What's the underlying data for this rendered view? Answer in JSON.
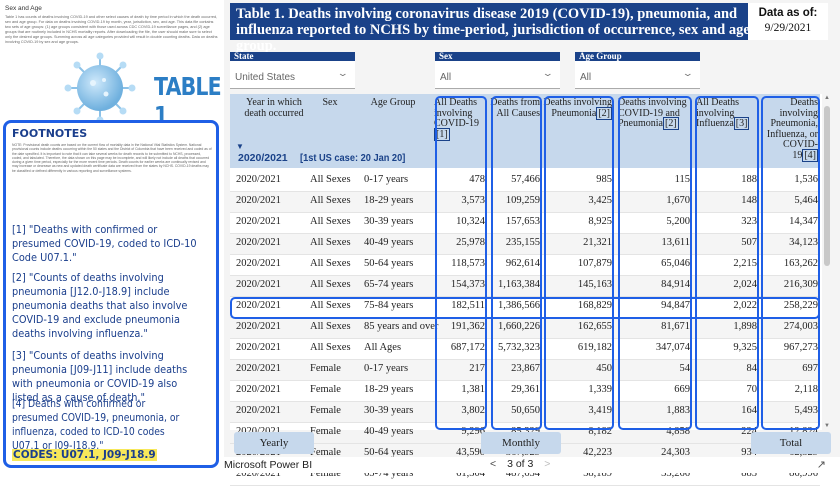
{
  "left_panel": {
    "intro_title": "Sex and Age",
    "intro_text": "Table 1 has counts of deaths involving COVID-19 and other select causes of death by time period in which the death occurred, sex and age group. For data on deaths involving COVID-19 by month, year, jurisdiction, sex, and age. This data file contains two sets of age groups: (1) age groups consistent with those used across CDC COVID-19 surveillance pages, and (2) age groups that are routinely included in NCHS mortality reports. After downloading the file, the user should make sure to select only the desired age groups. Summing across all age categories provided will result in double counting deaths. Data on deaths involving COVID-19 by sex and age groups.",
    "table_label": "TABLE 1",
    "footnotes": {
      "title": "FOOTNOTES",
      "small_text": "NOTE: Provisional death counts are based on the current flow of mortality data in the National Vital Statistics System. National provisional counts include deaths occurring within the 50 states and the District of Columbia that have been received and coded as of the date specified. It is important to note that it can take several weeks for death records to be submitted to NCHS, processed, coded, and tabulated. Therefore, the data shown on this page may be incomplete, and will likely not include all deaths that occurred during a given time period, especially for the more recent time periods. Death counts for earlier weeks are continually revised and may increase or decrease as new and updated death certificate data are received from the states by NCHS. COVID-19 deaths may be classified or defined differently in various reporting and surveillance systems.",
      "items": [
        "[1] \"Deaths with confirmed or presumed COVID-19, coded to ICD-10 Code U07.1.\"",
        "[2] \"Counts of deaths involving pneumonia [J12.0-J18.9] include pneumonia deaths that also involve COVID-19 and exclude pneumonia deaths involving influenza.\"",
        "[3] \"Counts of deaths involving pneumonia [J09-J11] include deaths with pneumonia or COVID-19 also listed as a cause of death.\"",
        "[4] Deaths with confirmed or presumed COVID-19, pneumonia, or influenza, coded to ICD-10 codes U07.1 or J09-J18.9.\""
      ],
      "codes": "CODES: U07.1, J09-J18.9"
    }
  },
  "report": {
    "title": "Table 1. Deaths involving coronavirus disease 2019 (COVID-19), pneumonia, and influenza reported to NCHS by time-period, jurisdiction of occurrence, sex and age-group.",
    "data_as_of_label": "Data as of:",
    "data_as_of_value": "9/29/2021",
    "slicers": [
      {
        "label": "State",
        "value": "United States"
      },
      {
        "label": "Sex",
        "value": "All"
      },
      {
        "label": "Age Group",
        "value": "All"
      }
    ],
    "headers": {
      "year": "Year in which death occurred",
      "sex": "Sex",
      "age": "Age Group",
      "covid": "All Deaths involving COVID-19",
      "covid_ref": "[1]",
      "all_causes": "Deaths from All Causes",
      "pneu": "Deaths involving Pneumonia",
      "pneu_ref": "[2]",
      "pneu_covid": "Deaths involving COVID-19 and Pneumonia",
      "pneu_covid_ref": "[2]",
      "flu": "All Deaths involving Influenza",
      "flu_ref": "[3]",
      "combo": "Deaths involving Pneumonia, Influenza, or COVID-19",
      "combo_ref": "[4]"
    },
    "group_year": "2020/2021",
    "group_case": "[1st US case: 20 Jan 20]",
    "rows": [
      [
        "2020/2021",
        "All Sexes",
        "0-17 years",
        "478",
        "57,466",
        "985",
        "115",
        "188",
        "1,536"
      ],
      [
        "2020/2021",
        "All Sexes",
        "18-29 years",
        "3,573",
        "109,259",
        "3,425",
        "1,670",
        "148",
        "5,464"
      ],
      [
        "2020/2021",
        "All Sexes",
        "30-39 years",
        "10,324",
        "157,653",
        "8,925",
        "5,200",
        "323",
        "14,347"
      ],
      [
        "2020/2021",
        "All Sexes",
        "40-49 years",
        "25,978",
        "235,155",
        "21,321",
        "13,611",
        "507",
        "34,123"
      ],
      [
        "2020/2021",
        "All Sexes",
        "50-64 years",
        "118,573",
        "962,614",
        "107,879",
        "65,046",
        "2,215",
        "163,262"
      ],
      [
        "2020/2021",
        "All Sexes",
        "65-74 years",
        "154,373",
        "1,163,384",
        "145,163",
        "84,914",
        "2,024",
        "216,309"
      ],
      [
        "2020/2021",
        "All Sexes",
        "75-84 years",
        "182,511",
        "1,386,566",
        "168,829",
        "94,847",
        "2,022",
        "258,229"
      ],
      [
        "2020/2021",
        "All Sexes",
        "85 years and over",
        "191,362",
        "1,660,226",
        "162,655",
        "81,671",
        "1,898",
        "274,003"
      ],
      [
        "2020/2021",
        "All Sexes",
        "All Ages",
        "687,172",
        "5,732,323",
        "619,182",
        "347,074",
        "9,325",
        "967,273"
      ],
      [
        "2020/2021",
        "Female",
        "0-17 years",
        "217",
        "23,867",
        "450",
        "54",
        "84",
        "697"
      ],
      [
        "2020/2021",
        "Female",
        "18-29 years",
        "1,381",
        "29,361",
        "1,339",
        "669",
        "70",
        "2,118"
      ],
      [
        "2020/2021",
        "Female",
        "30-39 years",
        "3,802",
        "50,650",
        "3,419",
        "1,883",
        "164",
        "5,493"
      ],
      [
        "2020/2021",
        "Female",
        "40-49 years",
        "9,296",
        "85,329",
        "8,182",
        "4,858",
        "224",
        "12,824"
      ],
      [
        "2020/2021",
        "Female",
        "50-64 years",
        "43,590",
        "367,929",
        "42,223",
        "24,303",
        "934",
        "62,329"
      ],
      [
        "2020/2021",
        "Female",
        "65-74 years",
        "61,304",
        "487,634",
        "58,189",
        "33,266",
        "883",
        "86,996"
      ]
    ],
    "tabs": [
      "Yearly",
      "Monthly",
      "Total"
    ]
  },
  "bottom_bar": {
    "brand": "Microsoft Power BI",
    "page": "3 of 3"
  },
  "colors": {
    "navy": "#1a4289",
    "highlight": "#1f5fe6",
    "header_fill": "#c6d8ec",
    "table1_blue": "#2c7ec5",
    "codes_highlight": "#f7e85a"
  }
}
